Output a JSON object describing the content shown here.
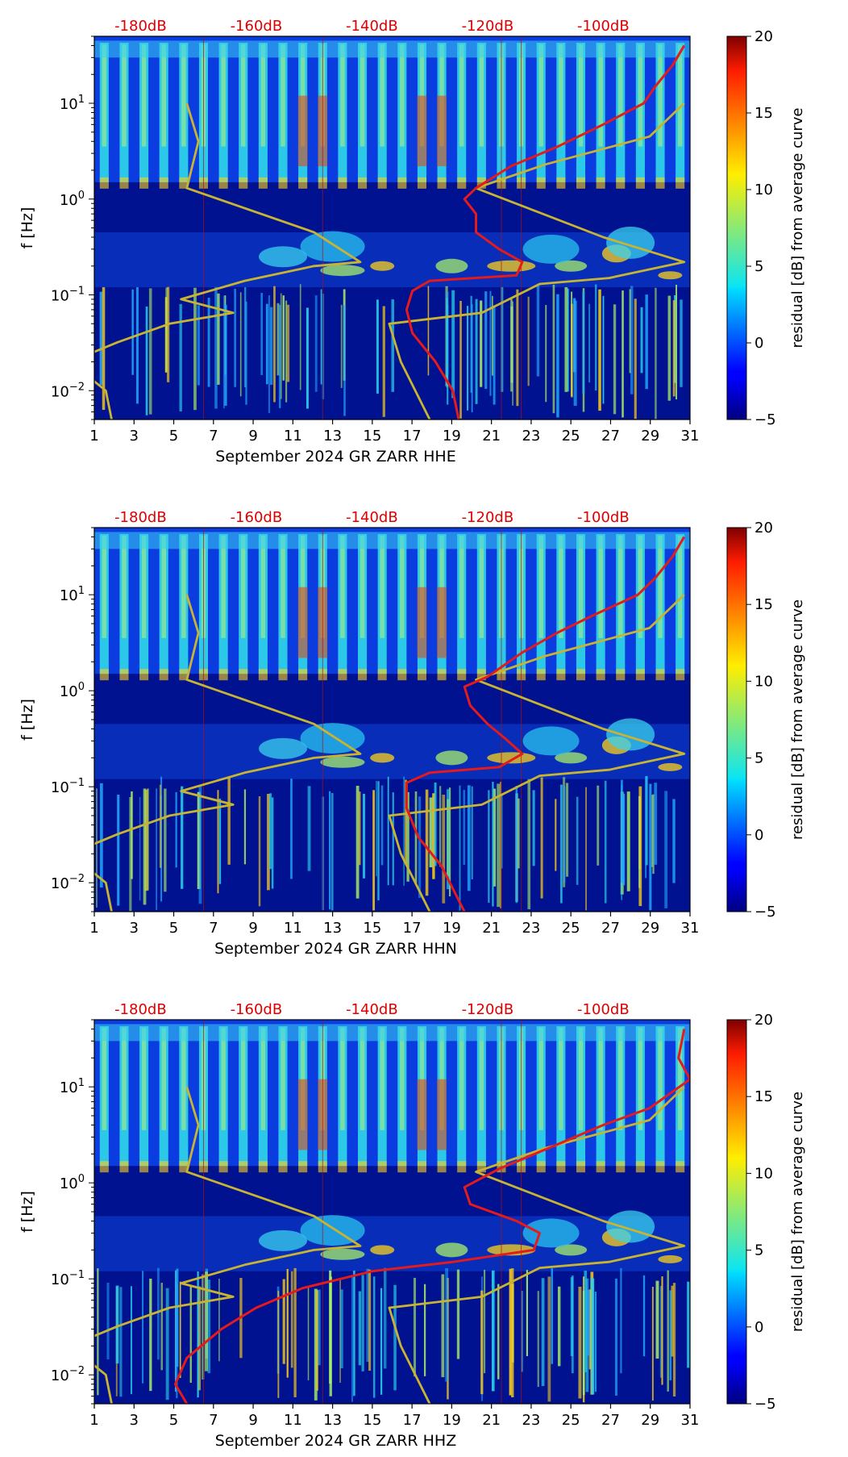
{
  "chart_data": [
    {
      "type": "heatmap",
      "xlabel": "September 2024 GR ZARR  HHE",
      "ylabel": "f [Hz]",
      "colorbar_label": "residual [dB] from average curve",
      "colorbar_range": [
        -5,
        20
      ],
      "colorbar_ticks": [
        "20",
        "15",
        "10",
        "5",
        "0",
        "−5"
      ],
      "x_ticks": [
        "1",
        "3",
        "5",
        "7",
        "9",
        "11",
        "13",
        "15",
        "17",
        "19",
        "21",
        "23",
        "25",
        "27",
        "29",
        "31"
      ],
      "y_ticks": [
        "10^1",
        "10^0",
        "10^-1",
        "10^-2"
      ],
      "xlim": [
        1,
        31
      ],
      "ylim": [
        0.005,
        50
      ],
      "db_axis_labels": [
        "-180dB",
        "-160dB",
        "-140dB",
        "-120dB",
        "-100dB"
      ],
      "db_axis_values": [
        -180,
        -160,
        -140,
        -120,
        -100
      ],
      "series": [
        {
          "name": "noise model (yellow)",
          "color": "#c8b432",
          "points": [
            [
              -172,
              10
            ],
            [
              -170,
              4
            ],
            [
              -172,
              1.3
            ],
            [
              -150,
              0.45
            ],
            [
              -142,
              0.22
            ],
            [
              -150,
              0.2
            ],
            [
              -162,
              0.14
            ],
            [
              -173,
              0.09
            ],
            [
              -164,
              0.065
            ],
            [
              -175,
              0.05
            ],
            [
              -184,
              0.032
            ],
            [
              -189,
              0.024
            ],
            [
              -189,
              0.014
            ],
            [
              -186,
              0.01
            ],
            [
              -185,
              0.005
            ]
          ]
        },
        {
          "name": "noise model (yellow) high",
          "color": "#c8b432",
          "points": [
            [
              -86,
              10
            ],
            [
              -92,
              4.5
            ],
            [
              -110,
              2.3
            ],
            [
              -122,
              1.3
            ],
            [
              -100,
              0.4
            ],
            [
              -86,
              0.22
            ],
            [
              -99,
              0.15
            ],
            [
              -111,
              0.13
            ],
            [
              -121,
              0.065
            ],
            [
              -137,
              0.05
            ],
            [
              -135,
              0.02
            ],
            [
              -130,
              0.005
            ]
          ]
        },
        {
          "name": "station curve (red)",
          "color": "#e41a1c",
          "points": [
            [
              -86,
              40
            ],
            [
              -88,
              25
            ],
            [
              -91,
              15
            ],
            [
              -93,
              10
            ],
            [
              -100,
              6
            ],
            [
              -108,
              3.5
            ],
            [
              -116,
              2.2
            ],
            [
              -122,
              1.3
            ],
            [
              -124,
              1.0
            ],
            [
              -122,
              0.7
            ],
            [
              -122,
              0.45
            ],
            [
              -118,
              0.3
            ],
            [
              -114,
              0.22
            ],
            [
              -115,
              0.16
            ],
            [
              -130,
              0.14
            ],
            [
              -133,
              0.11
            ],
            [
              -134,
              0.07
            ],
            [
              -133,
              0.04
            ],
            [
              -129,
              0.02
            ],
            [
              -126,
              0.01
            ],
            [
              -125,
              0.005
            ]
          ]
        }
      ]
    },
    {
      "type": "heatmap",
      "xlabel": "September 2024 GR ZARR  HHN",
      "ylabel": "f [Hz]",
      "colorbar_label": "residual [dB] from average curve",
      "colorbar_range": [
        -5,
        20
      ],
      "colorbar_ticks": [
        "20",
        "15",
        "10",
        "5",
        "0",
        "−5"
      ],
      "x_ticks": [
        "1",
        "3",
        "5",
        "7",
        "9",
        "11",
        "13",
        "15",
        "17",
        "19",
        "21",
        "23",
        "25",
        "27",
        "29",
        "31"
      ],
      "y_ticks": [
        "10^1",
        "10^0",
        "10^-1",
        "10^-2"
      ],
      "xlim": [
        1,
        31
      ],
      "ylim": [
        0.005,
        50
      ],
      "db_axis_labels": [
        "-180dB",
        "-160dB",
        "-140dB",
        "-120dB",
        "-100dB"
      ],
      "db_axis_values": [
        -180,
        -160,
        -140,
        -120,
        -100
      ],
      "series": [
        {
          "name": "noise model (yellow)",
          "color": "#c8b432",
          "points": [
            [
              -172,
              10
            ],
            [
              -170,
              4
            ],
            [
              -172,
              1.3
            ],
            [
              -150,
              0.45
            ],
            [
              -142,
              0.22
            ],
            [
              -150,
              0.2
            ],
            [
              -162,
              0.14
            ],
            [
              -173,
              0.09
            ],
            [
              -164,
              0.065
            ],
            [
              -175,
              0.05
            ],
            [
              -184,
              0.032
            ],
            [
              -189,
              0.024
            ],
            [
              -189,
              0.014
            ],
            [
              -186,
              0.01
            ],
            [
              -185,
              0.005
            ]
          ]
        },
        {
          "name": "noise model (yellow) high",
          "color": "#c8b432",
          "points": [
            [
              -86,
              10
            ],
            [
              -92,
              4.5
            ],
            [
              -110,
              2.3
            ],
            [
              -122,
              1.3
            ],
            [
              -100,
              0.4
            ],
            [
              -86,
              0.22
            ],
            [
              -99,
              0.15
            ],
            [
              -111,
              0.13
            ],
            [
              -121,
              0.065
            ],
            [
              -137,
              0.05
            ],
            [
              -135,
              0.02
            ],
            [
              -130,
              0.005
            ]
          ]
        },
        {
          "name": "station curve (red)",
          "color": "#e41a1c",
          "points": [
            [
              -86,
              40
            ],
            [
              -88,
              25
            ],
            [
              -91,
              15
            ],
            [
              -94,
              10
            ],
            [
              -102,
              6
            ],
            [
              -108,
              4
            ],
            [
              -114,
              2.5
            ],
            [
              -120,
              1.4
            ],
            [
              -124,
              1.1
            ],
            [
              -123,
              0.7
            ],
            [
              -120,
              0.45
            ],
            [
              -117,
              0.32
            ],
            [
              -114,
              0.22
            ],
            [
              -118,
              0.16
            ],
            [
              -130,
              0.14
            ],
            [
              -134,
              0.11
            ],
            [
              -134,
              0.06
            ],
            [
              -132,
              0.03
            ],
            [
              -128,
              0.015
            ],
            [
              -124,
              0.005
            ]
          ]
        }
      ]
    },
    {
      "type": "heatmap",
      "xlabel": "September 2024 GR ZARR  HHZ",
      "ylabel": "f [Hz]",
      "colorbar_label": "residual [dB] from average curve",
      "colorbar_range": [
        -5,
        20
      ],
      "colorbar_ticks": [
        "20",
        "15",
        "10",
        "5",
        "0",
        "−5"
      ],
      "x_ticks": [
        "1",
        "3",
        "5",
        "7",
        "9",
        "11",
        "13",
        "15",
        "17",
        "19",
        "21",
        "23",
        "25",
        "27",
        "29",
        "31"
      ],
      "y_ticks": [
        "10^1",
        "10^0",
        "10^-1",
        "10^-2"
      ],
      "xlim": [
        1,
        31
      ],
      "ylim": [
        0.005,
        50
      ],
      "db_axis_labels": [
        "-180dB",
        "-160dB",
        "-140dB",
        "-120dB",
        "-100dB"
      ],
      "db_axis_values": [
        -180,
        -160,
        -140,
        -120,
        -100
      ],
      "series": [
        {
          "name": "noise model (yellow)",
          "color": "#c8b432",
          "points": [
            [
              -172,
              10
            ],
            [
              -170,
              4
            ],
            [
              -172,
              1.3
            ],
            [
              -150,
              0.45
            ],
            [
              -142,
              0.22
            ],
            [
              -150,
              0.2
            ],
            [
              -162,
              0.14
            ],
            [
              -173,
              0.09
            ],
            [
              -164,
              0.065
            ],
            [
              -175,
              0.05
            ],
            [
              -184,
              0.032
            ],
            [
              -189,
              0.024
            ],
            [
              -189,
              0.014
            ],
            [
              -186,
              0.01
            ],
            [
              -185,
              0.005
            ]
          ]
        },
        {
          "name": "noise model (yellow) high",
          "color": "#c8b432",
          "points": [
            [
              -86,
              10
            ],
            [
              -92,
              4.5
            ],
            [
              -110,
              2.3
            ],
            [
              -122,
              1.3
            ],
            [
              -100,
              0.4
            ],
            [
              -86,
              0.22
            ],
            [
              -99,
              0.15
            ],
            [
              -111,
              0.13
            ],
            [
              -121,
              0.065
            ],
            [
              -137,
              0.05
            ],
            [
              -135,
              0.02
            ],
            [
              -130,
              0.005
            ]
          ]
        },
        {
          "name": "station curve (red)",
          "color": "#e41a1c",
          "points": [
            [
              -86,
              40
            ],
            [
              -87,
              20
            ],
            [
              -85,
              12
            ],
            [
              -92,
              6
            ],
            [
              -100,
              4
            ],
            [
              -108,
              2.5
            ],
            [
              -118,
              1.4
            ],
            [
              -124,
              0.9
            ],
            [
              -123,
              0.6
            ],
            [
              -115,
              0.4
            ],
            [
              -111,
              0.3
            ],
            [
              -112,
              0.2
            ],
            [
              -126,
              0.15
            ],
            [
              -140,
              0.12
            ],
            [
              -152,
              0.08
            ],
            [
              -160,
              0.05
            ],
            [
              -166,
              0.03
            ],
            [
              -172,
              0.015
            ],
            [
              -174,
              0.008
            ],
            [
              -172,
              0.005
            ]
          ]
        }
      ]
    }
  ]
}
